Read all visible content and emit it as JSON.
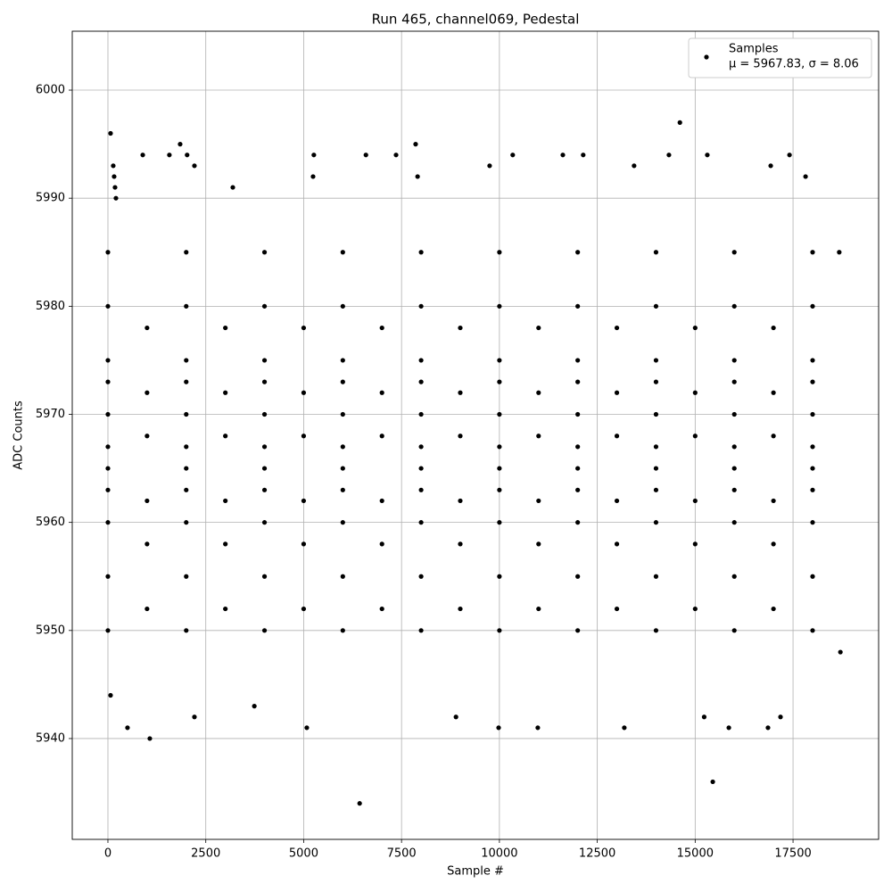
{
  "chart_data": {
    "type": "scatter",
    "title": "Run 465, channel069, Pedestal",
    "x_label": "Sample #",
    "y_label": "ADC Counts",
    "legend_note": "μ = 5967.83, σ = 8.06",
    "legend_loc": "upper right",
    "grid": true,
    "xlim": [
      -911,
      19686
    ],
    "ylim": [
      5930.67,
      6005.45
    ],
    "xticks": [
      0,
      2500,
      5000,
      7500,
      10000,
      12500,
      15000,
      17500
    ],
    "yticks": [
      5940,
      5950,
      5960,
      5970,
      5980,
      5990,
      6000
    ],
    "series": [
      {
        "name": "Samples",
        "color": "#000000",
        "x": [
          68,
          136,
          159,
          182,
          205,
          2023,
          68,
          500,
          1070,
          890,
          1570,
          1845,
          2210,
          2210,
          3190,
          3740,
          5080,
          5260,
          5240,
          6430,
          6590,
          7360,
          7860,
          7910,
          8890,
          9750,
          9980,
          10340,
          10980,
          11620,
          12140,
          13190,
          13440,
          14330,
          14610,
          15230,
          15310,
          15450,
          15860,
          16860,
          16930,
          17180,
          17410,
          17820,
          18680,
          18710,
          0,
          0,
          0,
          0,
          0,
          0,
          0,
          0,
          0,
          0,
          0,
          2000,
          2000,
          2000,
          2000,
          2000,
          2000,
          2000,
          2000,
          2000,
          2000,
          2000,
          4000,
          4000,
          4000,
          4000,
          4000,
          4000,
          4000,
          4000,
          4000,
          4000,
          4000,
          6000,
          6000,
          6000,
          6000,
          6000,
          6000,
          6000,
          6000,
          6000,
          6000,
          6000,
          8000,
          8000,
          8000,
          8000,
          8000,
          8000,
          8000,
          8000,
          8000,
          8000,
          8000,
          10000,
          10000,
          10000,
          10000,
          10000,
          10000,
          10000,
          10000,
          10000,
          10000,
          10000,
          12000,
          12000,
          12000,
          12000,
          12000,
          12000,
          12000,
          12000,
          12000,
          12000,
          12000,
          14000,
          14000,
          14000,
          14000,
          14000,
          14000,
          14000,
          14000,
          14000,
          14000,
          14000,
          16000,
          16000,
          16000,
          16000,
          16000,
          16000,
          16000,
          16000,
          16000,
          16000,
          16000,
          18000,
          18000,
          18000,
          18000,
          18000,
          18000,
          18000,
          18000,
          18000,
          18000,
          18000,
          1000,
          1000,
          1000,
          1000,
          1000,
          1000,
          3000,
          3000,
          3000,
          3000,
          3000,
          3000,
          5000,
          5000,
          5000,
          5000,
          5000,
          5000,
          7000,
          7000,
          7000,
          7000,
          7000,
          7000,
          9000,
          9000,
          9000,
          9000,
          9000,
          9000,
          11000,
          11000,
          11000,
          11000,
          11000,
          11000,
          13000,
          13000,
          13000,
          13000,
          13000,
          13000,
          15000,
          15000,
          15000,
          15000,
          15000,
          15000,
          17000,
          17000,
          17000,
          17000,
          17000,
          17000
        ],
        "values": [
          5996,
          5993,
          5992,
          5991,
          5990,
          5994,
          5944,
          5941,
          5940,
          5994,
          5994,
          5995,
          5993,
          5942,
          5991,
          5943,
          5941,
          5994,
          5992,
          5934,
          5994,
          5994,
          5995,
          5992,
          5942,
          5993,
          5941,
          5994,
          5941,
          5994,
          5994,
          5941,
          5993,
          5994,
          5997,
          5942,
          5994,
          5936,
          5941,
          5941,
          5993,
          5942,
          5994,
          5992,
          5985,
          5948,
          5950,
          5955,
          5960,
          5963,
          5965,
          5967,
          5970,
          5973,
          5975,
          5980,
          5985,
          5950,
          5955,
          5960,
          5963,
          5965,
          5967,
          5970,
          5973,
          5975,
          5980,
          5985,
          5950,
          5955,
          5960,
          5963,
          5965,
          5967,
          5970,
          5973,
          5975,
          5980,
          5985,
          5950,
          5955,
          5960,
          5963,
          5965,
          5967,
          5970,
          5973,
          5975,
          5980,
          5985,
          5950,
          5955,
          5960,
          5963,
          5965,
          5967,
          5970,
          5973,
          5975,
          5980,
          5985,
          5950,
          5955,
          5960,
          5963,
          5965,
          5967,
          5970,
          5973,
          5975,
          5980,
          5985,
          5950,
          5955,
          5960,
          5963,
          5965,
          5967,
          5970,
          5973,
          5975,
          5980,
          5985,
          5950,
          5955,
          5960,
          5963,
          5965,
          5967,
          5970,
          5973,
          5975,
          5980,
          5985,
          5950,
          5955,
          5960,
          5963,
          5965,
          5967,
          5970,
          5973,
          5975,
          5980,
          5985,
          5950,
          5955,
          5960,
          5963,
          5965,
          5967,
          5970,
          5973,
          5975,
          5980,
          5985,
          5952,
          5958,
          5962,
          5968,
          5972,
          5978,
          5952,
          5958,
          5962,
          5968,
          5972,
          5978,
          5952,
          5958,
          5962,
          5968,
          5972,
          5978,
          5952,
          5958,
          5962,
          5968,
          5972,
          5978,
          5952,
          5958,
          5962,
          5968,
          5972,
          5978,
          5952,
          5958,
          5962,
          5968,
          5972,
          5978,
          5952,
          5958,
          5962,
          5968,
          5972,
          5978,
          5952,
          5958,
          5962,
          5968,
          5972,
          5978,
          5952,
          5958,
          5962,
          5968,
          5972,
          5978
        ]
      }
    ]
  }
}
